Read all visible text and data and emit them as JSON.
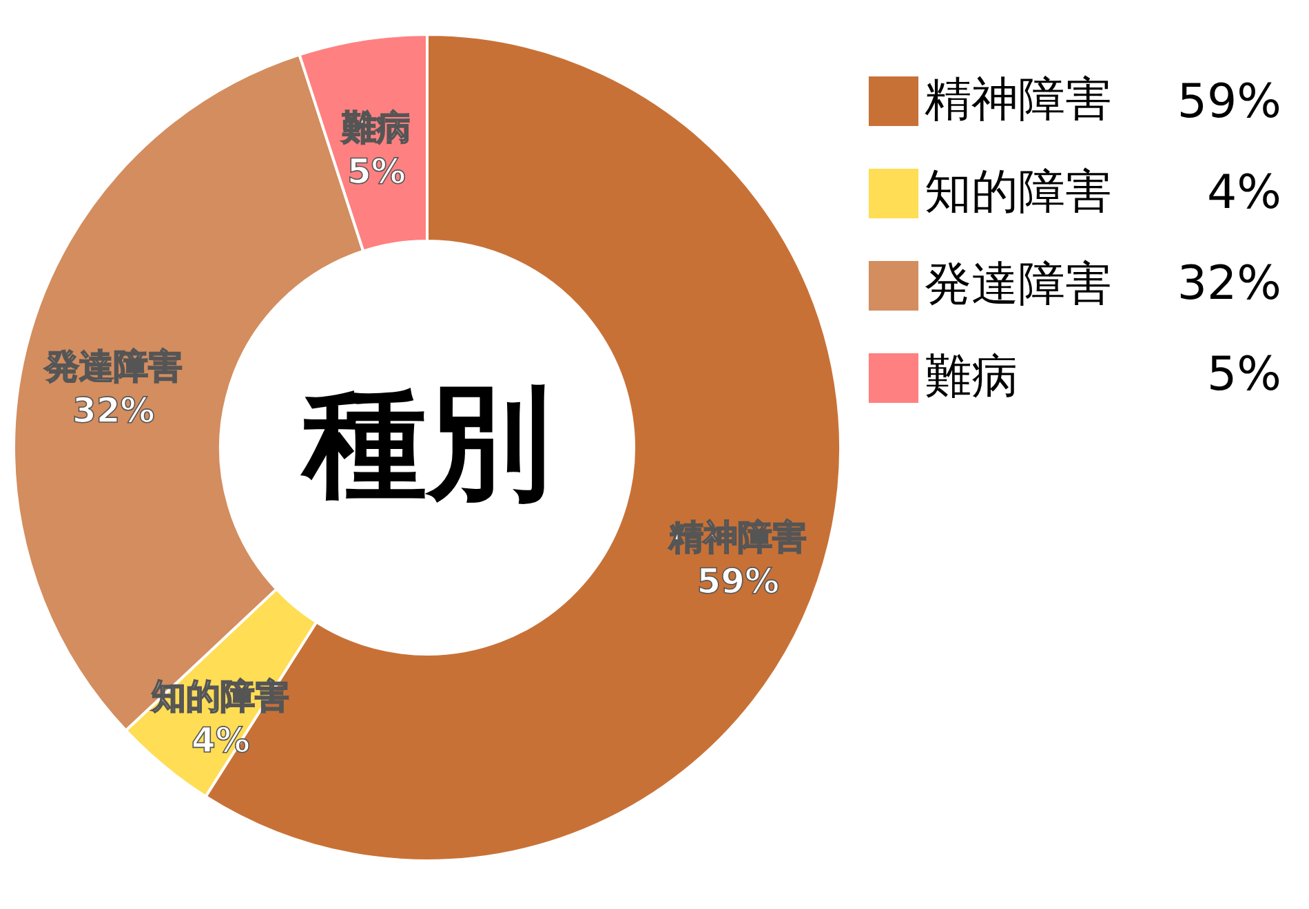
{
  "chart_data": {
    "type": "donut",
    "title": "種別",
    "categories": [
      "精神障害",
      "知的障害",
      "発達障害",
      "難病"
    ],
    "values": [
      59,
      4,
      32,
      5
    ],
    "value_labels": [
      "59%",
      "4%",
      "32%",
      "5%"
    ],
    "colors": [
      "#c87137",
      "#ffdd55",
      "#d38d5f",
      "#ff8080"
    ],
    "legend": "right"
  }
}
